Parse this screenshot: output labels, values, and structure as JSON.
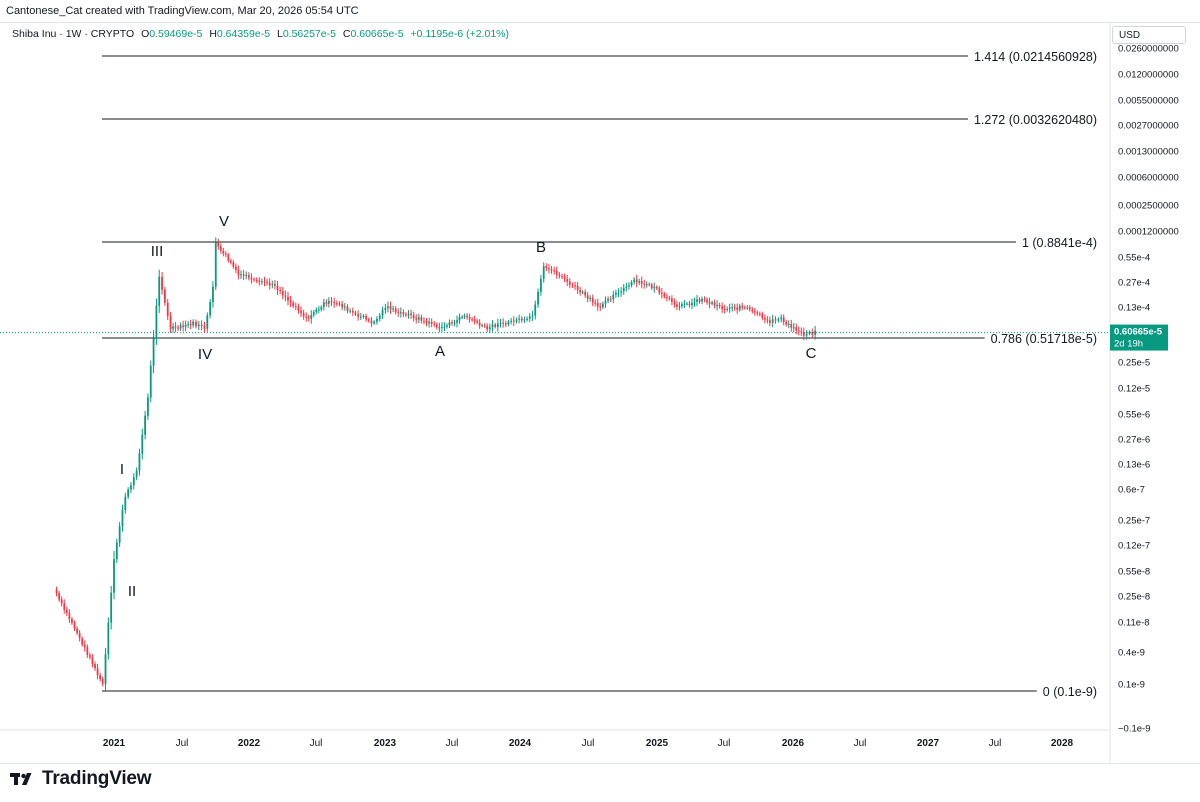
{
  "header": {
    "credit": "Cantonese_Cat created with TradingView.com, Mar 20, 2026 05:54 UTC"
  },
  "legend": {
    "symbol": "Shiba Inu · 1W · CRYPTO",
    "o_label": "O",
    "o_value": "0.59469e-5",
    "h_label": "H",
    "h_value": "0.64359e-5",
    "l_label": "L",
    "l_value": "0.56257e-5",
    "c_label": "C",
    "c_value": "0.60665e-5",
    "change": "+0.1195e-6 (+2.01%)"
  },
  "currency": "USD",
  "price_tag": {
    "price": "0.60665e-5",
    "countdown": "2d 19h",
    "color": "#089981"
  },
  "footer": {
    "brand": "TradingView"
  },
  "colors": {
    "up": "#089981",
    "down": "#f23645",
    "line": "#131722",
    "price_line": "#089981"
  },
  "chart_data": {
    "type": "candlestick",
    "title": "Shiba Inu · 1W · CRYPTO",
    "y_scale": "log",
    "y_tick_labels": [
      "0.0260000000",
      "0.0120000000",
      "0.0055000000",
      "0.0027000000",
      "0.0013000000",
      "0.0006000000",
      "0.0002500000",
      "0.0001200000",
      "0.55e-4",
      "0.27e-4",
      "0.13e-4",
      "0.25e-5",
      "0.12e-5",
      "0.55e-6",
      "0.27e-6",
      "0.13e-6",
      "0.6e-7",
      "0.25e-7",
      "0.12e-7",
      "0.55e-8",
      "0.25e-8",
      "0.11e-8",
      "0.4e-9",
      "0.1e-9",
      "−0.1e-9"
    ],
    "x_tick_labels": [
      "2021",
      "Jul",
      "2022",
      "Jul",
      "2023",
      "Jul",
      "2024",
      "Jul",
      "2025",
      "Jul",
      "2026",
      "Jul",
      "2027",
      "Jul",
      "2028"
    ],
    "fib_levels": [
      {
        "label": "1.414 (0.0214560928)"
      },
      {
        "label": "1.272 (0.0032620480)"
      },
      {
        "label": "1 (0.8841e-4)"
      },
      {
        "label": "0.786 (0.51718e-5)"
      },
      {
        "label": "0 (0.1e-9)"
      }
    ],
    "wave_labels": [
      "I",
      "II",
      "III",
      "IV",
      "V",
      "A",
      "B",
      "C"
    ],
    "price_path": [
      [
        "Nov 2020",
        3e-09
      ],
      [
        "Dec 2020",
        1e-10
      ],
      [
        "Jan 2021",
        8e-09
      ],
      [
        "Feb 2021",
        5e-08
      ],
      [
        "Mar 2021",
        1e-07
      ],
      [
        "Apr 2021",
        1e-06
      ],
      [
        "May 2021",
        3e-05
      ],
      [
        "Jun 2021",
        7e-06
      ],
      [
        "Aug 2021",
        8e-06
      ],
      [
        "Sep 2021",
        7e-06
      ],
      [
        "Oct 2021",
        3.5e-05
      ],
      [
        "Oct 2021",
        8.8e-05
      ],
      [
        "Dec 2021",
        3.5e-05
      ],
      [
        "Mar 2022",
        2.5e-05
      ],
      [
        "Jun 2022",
        9e-06
      ],
      [
        "Aug 2022",
        1.6e-05
      ],
      [
        "Dec 2022",
        8e-06
      ],
      [
        "Jan 2023",
        1.3e-05
      ],
      [
        "Jun 2023",
        7e-06
      ],
      [
        "Aug 2023",
        1e-05
      ],
      [
        "Oct 2023",
        7e-06
      ],
      [
        "Feb 2024",
        1e-05
      ],
      [
        "Mar 2024",
        4.5e-05
      ],
      [
        "Jun 2024",
        2.2e-05
      ],
      [
        "Aug 2024",
        1.3e-05
      ],
      [
        "Nov 2024",
        2.9e-05
      ],
      [
        "Jan 2025",
        2.2e-05
      ],
      [
        "Mar 2025",
        1.3e-05
      ],
      [
        "May 2025",
        1.6e-05
      ],
      [
        "Jul 2025",
        1.2e-05
      ],
      [
        "Sep 2025",
        1.3e-05
      ],
      [
        "Nov 2025",
        8.5e-06
      ],
      [
        "Dec 2025",
        9e-06
      ],
      [
        "Feb 2026",
        5.6e-06
      ],
      [
        "Mar 2026",
        6.07e-06
      ]
    ]
  }
}
